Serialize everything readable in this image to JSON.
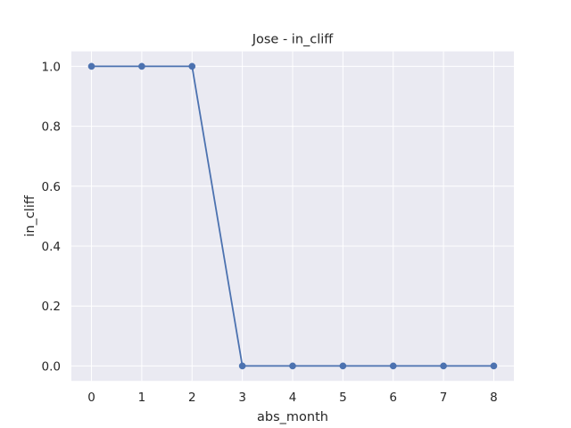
{
  "chart_data": {
    "type": "line",
    "title": "Jose - in_cliff",
    "xlabel": "abs_month",
    "ylabel": "in_cliff",
    "x": [
      0,
      1,
      2,
      3,
      4,
      5,
      6,
      7,
      8
    ],
    "series": [
      {
        "values": [
          1.0,
          1.0,
          1.0,
          0.0,
          0.0,
          0.0,
          0.0,
          0.0,
          0.0
        ],
        "color": "#4c72b0",
        "marker": "circle"
      }
    ],
    "xlim": [
      -0.4,
      8.4
    ],
    "ylim": [
      -0.05,
      1.05
    ],
    "xticks": [
      0,
      1,
      2,
      3,
      4,
      5,
      6,
      7,
      8
    ],
    "xtick_labels": [
      "0",
      "1",
      "2",
      "3",
      "4",
      "5",
      "6",
      "7",
      "8"
    ],
    "yticks": [
      0.0,
      0.2,
      0.4,
      0.6,
      0.8,
      1.0
    ],
    "ytick_labels": [
      "0.0",
      "0.2",
      "0.4",
      "0.6",
      "0.8",
      "1.0"
    ],
    "grid": true,
    "background": "#eaeaf2",
    "grid_color": "#ffffff"
  }
}
